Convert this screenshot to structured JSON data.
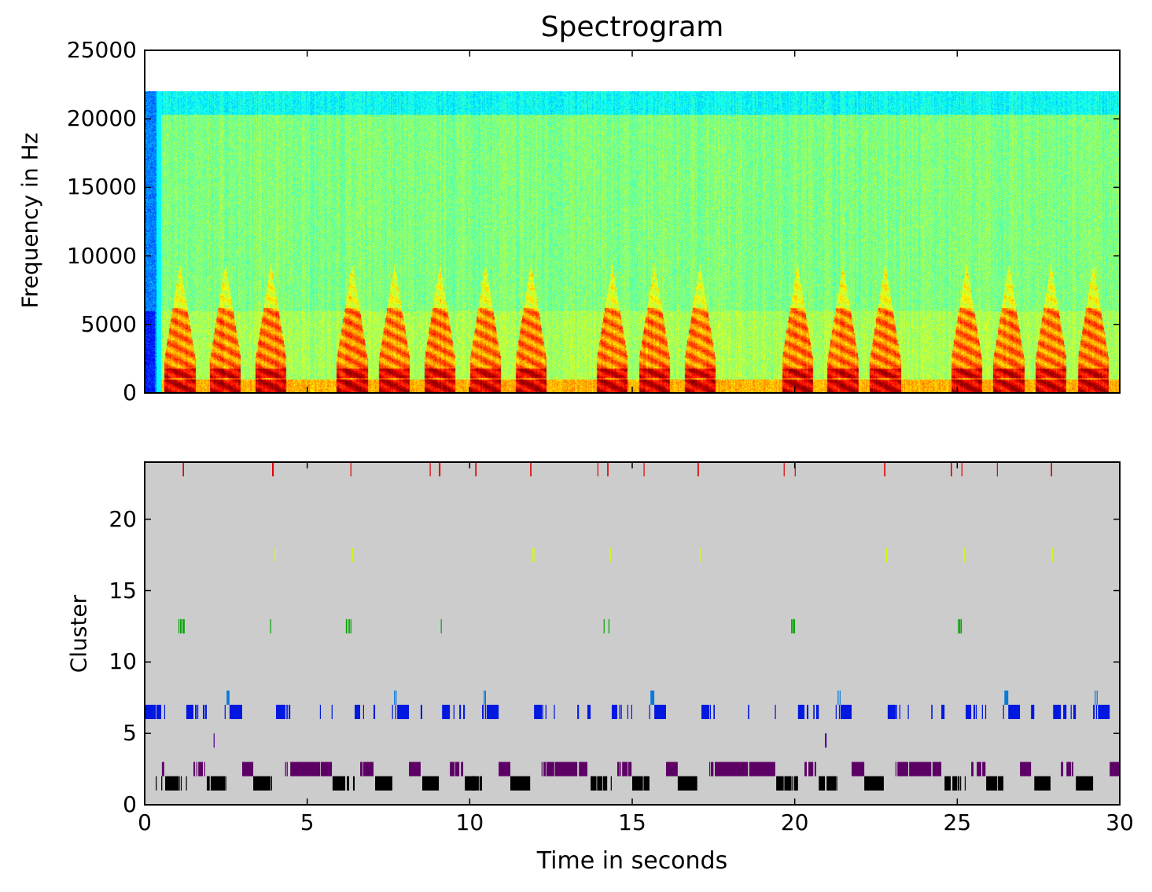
{
  "chart_data": [
    {
      "type": "heatmap",
      "title": "Spectrogram",
      "xlabel": "",
      "ylabel": "Frequency in Hz",
      "xlim": [
        0,
        30
      ],
      "ylim": [
        0,
        25000
      ],
      "max_frequency_hz": 22050,
      "colormap": "jet",
      "xticks": [
        0,
        5,
        10,
        15,
        20,
        25,
        30
      ],
      "yticks": [
        0,
        5000,
        10000,
        15000,
        20000,
        25000
      ],
      "ytick_labels": [
        "0",
        "5000",
        "10000",
        "15000",
        "20000",
        "25000"
      ],
      "syllable_onsets_s": [
        0.6,
        2.0,
        3.4,
        5.9,
        7.2,
        8.6,
        10.0,
        11.4,
        13.9,
        15.2,
        16.6,
        19.6,
        21.0,
        22.3,
        24.8,
        26.1,
        27.4,
        28.7
      ]
    },
    {
      "type": "scatter",
      "subtype": "event-raster",
      "title": "",
      "xlabel": "Time in seconds",
      "ylabel": "Cluster",
      "xlim": [
        0,
        30
      ],
      "ylim": [
        0,
        24
      ],
      "xticks": [
        0,
        5,
        10,
        15,
        20,
        25,
        30
      ],
      "xtick_labels": [
        "0",
        "5",
        "10",
        "15",
        "20",
        "25",
        "30"
      ],
      "yticks": [
        0,
        5,
        10,
        15,
        20
      ],
      "ytick_labels": [
        "0",
        "5",
        "10",
        "15",
        "20"
      ],
      "background": "#cccccc",
      "series": [
        {
          "name": "cluster 1",
          "cluster": 1,
          "color": "#000000",
          "segments": [
            [
              0.34,
              0.37
            ],
            [
              0.51,
              0.54
            ],
            [
              0.63,
              1.04
            ],
            [
              1.05,
              1.08
            ],
            [
              1.11,
              1.13
            ],
            [
              1.27,
              1.29
            ],
            [
              1.91,
              2.0
            ],
            [
              2.03,
              2.47
            ],
            [
              2.48,
              2.51
            ],
            [
              3.34,
              3.87
            ],
            [
              3.89,
              3.92
            ],
            [
              5.78,
              6.17
            ],
            [
              6.22,
              6.29
            ],
            [
              6.41,
              6.46
            ],
            [
              7.09,
              7.62
            ],
            [
              8.54,
              9.05
            ],
            [
              9.85,
              10.16
            ],
            [
              10.07,
              10.28
            ],
            [
              10.3,
              10.38
            ],
            [
              11.25,
              11.86
            ],
            [
              13.72,
              13.9
            ],
            [
              13.92,
              14.08
            ],
            [
              14.1,
              14.23
            ],
            [
              14.34,
              14.36
            ],
            [
              15.0,
              15.33
            ],
            [
              15.35,
              15.53
            ],
            [
              16.4,
              17.0
            ],
            [
              19.43,
              19.66
            ],
            [
              19.68,
              19.9
            ],
            [
              19.92,
              19.95
            ],
            [
              19.98,
              20.05
            ],
            [
              20.03,
              20.1
            ],
            [
              20.74,
              20.93
            ],
            [
              20.98,
              21.27
            ],
            [
              21.28,
              21.3
            ],
            [
              22.14,
              22.74
            ],
            [
              24.61,
              24.8
            ],
            [
              24.85,
              25.0
            ],
            [
              25.02,
              25.07
            ],
            [
              25.09,
              25.11
            ],
            [
              25.23,
              25.25
            ],
            [
              25.89,
              26.23
            ],
            [
              26.25,
              26.42
            ],
            [
              27.37,
              27.87
            ],
            [
              28.65,
              29.18
            ]
          ]
        },
        {
          "name": "cluster 2",
          "cluster": 2,
          "color": "#5c0066",
          "segments": [
            [
              0.53,
              0.6
            ],
            [
              1.5,
              1.55
            ],
            [
              1.59,
              1.62
            ],
            [
              1.65,
              1.79
            ],
            [
              1.83,
              1.86
            ],
            [
              3.0,
              3.34
            ],
            [
              4.32,
              4.35
            ],
            [
              4.37,
              4.4
            ],
            [
              4.48,
              5.4
            ],
            [
              5.42,
              5.76
            ],
            [
              6.63,
              6.7
            ],
            [
              6.72,
              7.04
            ],
            [
              8.13,
              8.49
            ],
            [
              9.39,
              9.53
            ],
            [
              9.55,
              9.68
            ],
            [
              9.73,
              9.8
            ],
            [
              10.89,
              11.25
            ],
            [
              12.21,
              12.23
            ],
            [
              12.27,
              12.34
            ],
            [
              12.36,
              12.6
            ],
            [
              12.62,
              13.31
            ],
            [
              13.36,
              13.62
            ],
            [
              14.54,
              14.61
            ],
            [
              14.63,
              14.66
            ],
            [
              14.69,
              14.86
            ],
            [
              14.88,
              14.98
            ],
            [
              16.04,
              16.4
            ],
            [
              17.37,
              17.4
            ],
            [
              17.42,
              17.5
            ],
            [
              17.54,
              18.56
            ],
            [
              18.6,
              19.4
            ],
            [
              20.3,
              20.37
            ],
            [
              20.42,
              20.57
            ],
            [
              20.61,
              20.66
            ],
            [
              21.75,
              22.14
            ],
            [
              23.1,
              23.12
            ],
            [
              23.16,
              23.49
            ],
            [
              23.52,
              24.2
            ],
            [
              24.24,
              24.51
            ],
            [
              25.43,
              25.5
            ],
            [
              25.6,
              25.74
            ],
            [
              25.77,
              25.87
            ],
            [
              26.93,
              27.27
            ],
            [
              28.19,
              28.26
            ],
            [
              28.36,
              28.5
            ],
            [
              28.52,
              28.57
            ],
            [
              29.69,
              30.0
            ]
          ]
        },
        {
          "name": "cluster 4",
          "cluster": 4,
          "color": "#4b0099",
          "segments": [
            [
              2.12,
              2.15
            ],
            [
              20.93,
              20.98
            ]
          ]
        },
        {
          "name": "cluster 6",
          "cluster": 6,
          "color": "#0018e0",
          "segments": [
            [
              0.0,
              0.34
            ],
            [
              0.36,
              0.51
            ],
            [
              0.6,
              0.63
            ],
            [
              1.28,
              1.5
            ],
            [
              1.55,
              1.6
            ],
            [
              1.62,
              1.65
            ],
            [
              1.79,
              1.84
            ],
            [
              1.86,
              1.91
            ],
            [
              2.46,
              2.49
            ],
            [
              2.61,
              3.0
            ],
            [
              4.04,
              4.33
            ],
            [
              4.36,
              4.4
            ],
            [
              4.43,
              4.48
            ],
            [
              5.39,
              5.42
            ],
            [
              5.75,
              5.78
            ],
            [
              6.46,
              6.63
            ],
            [
              6.72,
              6.75
            ],
            [
              7.04,
              7.09
            ],
            [
              7.61,
              7.64
            ],
            [
              7.71,
              7.74
            ],
            [
              7.77,
              8.13
            ],
            [
              8.49,
              8.54
            ],
            [
              9.15,
              9.39
            ],
            [
              9.5,
              9.53
            ],
            [
              9.68,
              9.73
            ],
            [
              9.8,
              9.85
            ],
            [
              10.38,
              10.43
            ],
            [
              10.47,
              10.5
            ],
            [
              10.52,
              10.89
            ],
            [
              11.98,
              12.22
            ],
            [
              12.23,
              12.26
            ],
            [
              12.33,
              12.36
            ],
            [
              12.59,
              12.62
            ],
            [
              13.31,
              13.36
            ],
            [
              13.62,
              13.72
            ],
            [
              14.37,
              14.54
            ],
            [
              14.6,
              14.63
            ],
            [
              14.65,
              14.68
            ],
            [
              14.85,
              14.88
            ],
            [
              14.97,
              15.0
            ],
            [
              15.52,
              15.55
            ],
            [
              15.68,
              16.04
            ],
            [
              17.13,
              17.37
            ],
            [
              17.39,
              17.42
            ],
            [
              17.5,
              17.54
            ],
            [
              18.56,
              18.6
            ],
            [
              19.39,
              19.42
            ],
            [
              20.1,
              20.3
            ],
            [
              20.37,
              20.42
            ],
            [
              20.57,
              20.61
            ],
            [
              20.66,
              20.74
            ],
            [
              21.26,
              21.29
            ],
            [
              21.36,
              21.39
            ],
            [
              21.41,
              21.75
            ],
            [
              22.86,
              23.11
            ],
            [
              23.12,
              23.15
            ],
            [
              23.22,
              23.25
            ],
            [
              23.48,
              23.51
            ],
            [
              24.2,
              24.24
            ],
            [
              24.51,
              24.61
            ],
            [
              25.26,
              25.43
            ],
            [
              25.5,
              25.55
            ],
            [
              25.57,
              25.6
            ],
            [
              25.76,
              25.79
            ],
            [
              25.86,
              25.89
            ],
            [
              26.41,
              26.44
            ],
            [
              26.57,
              26.93
            ],
            [
              27.27,
              27.37
            ],
            [
              27.95,
              28.19
            ],
            [
              28.26,
              28.36
            ],
            [
              28.49,
              28.52
            ],
            [
              28.57,
              28.65
            ],
            [
              29.18,
              29.23
            ],
            [
              29.27,
              29.3
            ],
            [
              29.33,
              29.69
            ]
          ]
        },
        {
          "name": "cluster 7",
          "cluster": 7,
          "color": "#0a7ad8",
          "segments": [
            [
              2.52,
              2.61
            ],
            [
              7.67,
              7.7
            ],
            [
              7.72,
              7.75
            ],
            [
              10.43,
              10.46
            ],
            [
              10.47,
              10.5
            ],
            [
              15.56,
              15.68
            ],
            [
              21.32,
              21.35
            ],
            [
              21.38,
              21.41
            ],
            [
              26.45,
              26.57
            ],
            [
              29.23,
              29.26
            ],
            [
              29.29,
              29.32
            ]
          ]
        },
        {
          "name": "cluster 12",
          "cluster": 12,
          "color": "#00a000",
          "segments": [
            [
              1.04,
              1.06
            ],
            [
              1.09,
              1.11
            ],
            [
              1.13,
              1.15
            ],
            [
              1.18,
              1.23
            ],
            [
              3.86,
              3.88
            ],
            [
              6.19,
              6.23
            ],
            [
              6.27,
              6.31
            ],
            [
              6.33,
              6.35
            ],
            [
              9.11,
              9.13
            ],
            [
              14.12,
              14.14
            ],
            [
              14.27,
              14.29
            ],
            [
              19.89,
              19.91
            ],
            [
              19.93,
              19.97
            ],
            [
              19.98,
              20.0
            ],
            [
              25.02,
              25.04
            ],
            [
              25.06,
              25.08
            ],
            [
              25.1,
              25.14
            ]
          ]
        },
        {
          "name": "cluster 17",
          "cluster": 17,
          "color": "#ccff00",
          "segments": [
            [
              4.0,
              4.04
            ],
            [
              6.38,
              6.4
            ],
            [
              11.93,
              11.99
            ],
            [
              14.3,
              14.34
            ],
            [
              17.06,
              17.1
            ],
            [
              22.8,
              22.85
            ],
            [
              25.19,
              25.23
            ],
            [
              27.91,
              27.93
            ]
          ]
        },
        {
          "name": "cluster 23",
          "cluster": 23,
          "color": "#e00000",
          "segments": [
            [
              1.17,
              1.21
            ],
            [
              3.92,
              3.97
            ],
            [
              6.33,
              6.35
            ],
            [
              8.77,
              8.79
            ],
            [
              9.05,
              9.1
            ],
            [
              10.17,
              10.21
            ],
            [
              11.86,
              11.9
            ],
            [
              13.93,
              13.95
            ],
            [
              14.23,
              14.27
            ],
            [
              15.35,
              15.37
            ],
            [
              17.01,
              17.05
            ],
            [
              19.66,
              19.68
            ],
            [
              20.0,
              20.02
            ],
            [
              22.75,
              22.79
            ],
            [
              24.8,
              24.84
            ],
            [
              25.13,
              25.15
            ],
            [
              26.22,
              26.24
            ],
            [
              27.88,
              27.92
            ]
          ]
        }
      ]
    }
  ]
}
